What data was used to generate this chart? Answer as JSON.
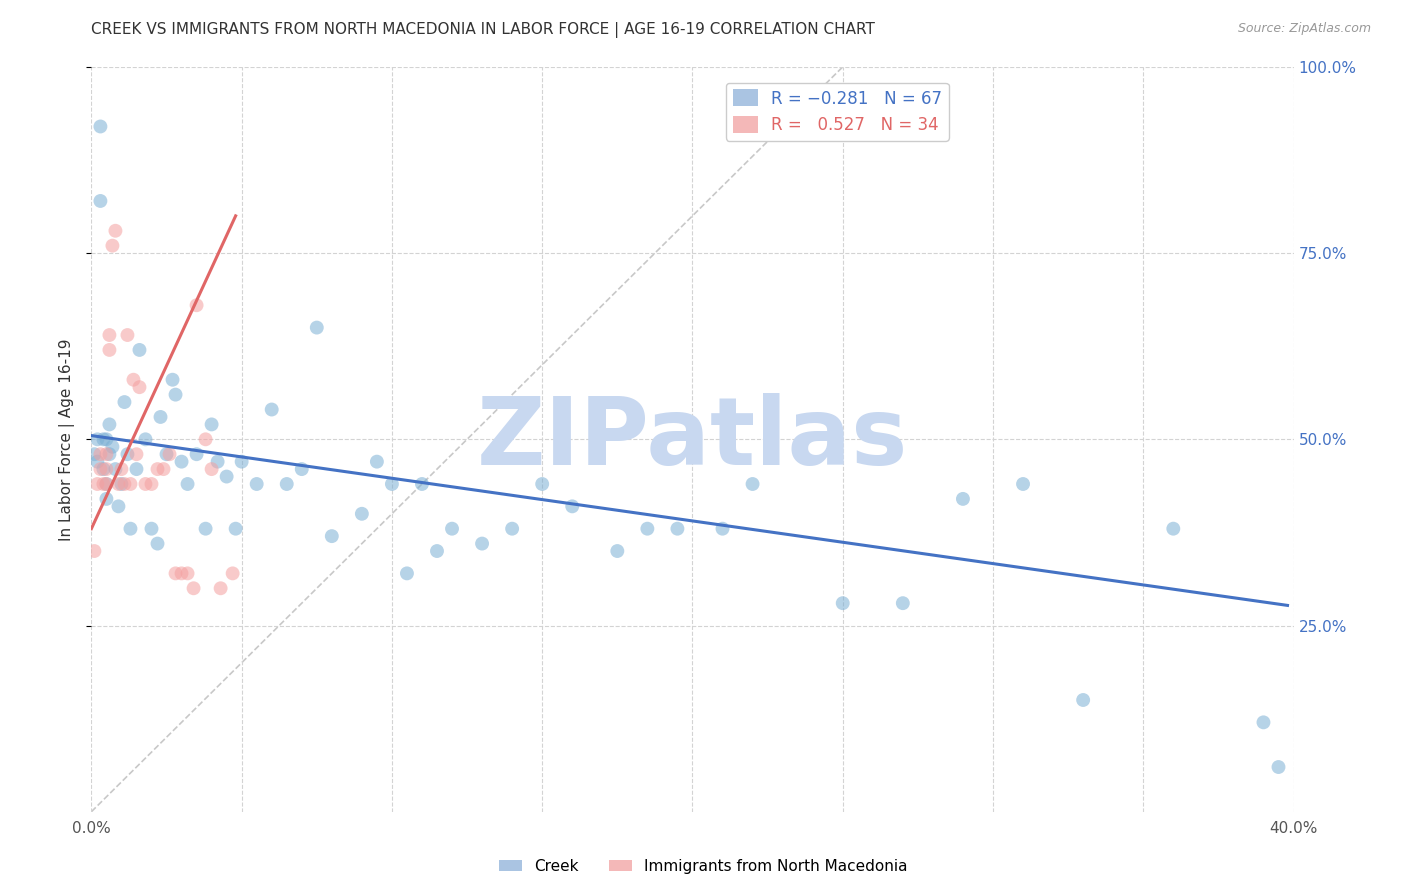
{
  "title": "CREEK VS IMMIGRANTS FROM NORTH MACEDONIA IN LABOR FORCE | AGE 16-19 CORRELATION CHART",
  "source": "Source: ZipAtlas.com",
  "ylabel": "In Labor Force | Age 16-19",
  "x_min": 0.0,
  "x_max": 0.4,
  "y_min": 0.0,
  "y_max": 1.0,
  "x_ticks": [
    0.0,
    0.05,
    0.1,
    0.15,
    0.2,
    0.25,
    0.3,
    0.35,
    0.4
  ],
  "x_tick_labels": [
    "0.0%",
    "",
    "",
    "",
    "",
    "",
    "",
    "",
    "40.0%"
  ],
  "y_ticks_right": [
    0.25,
    0.5,
    0.75,
    1.0
  ],
  "y_tick_labels_right": [
    "25.0%",
    "50.0%",
    "75.0%",
    "100.0%"
  ],
  "creek_color": "#7bafd4",
  "nm_color": "#f4a0a0",
  "blue_line_color": "#4472c4",
  "pink_line_color": "#e06666",
  "grid_color": "#d3d3d3",
  "watermark": "ZIPatlas",
  "creek_x": [
    0.001,
    0.002,
    0.002,
    0.003,
    0.003,
    0.004,
    0.004,
    0.005,
    0.005,
    0.005,
    0.006,
    0.006,
    0.007,
    0.008,
    0.009,
    0.01,
    0.011,
    0.012,
    0.013,
    0.015,
    0.016,
    0.018,
    0.02,
    0.022,
    0.023,
    0.025,
    0.027,
    0.028,
    0.03,
    0.032,
    0.035,
    0.038,
    0.04,
    0.042,
    0.045,
    0.048,
    0.05,
    0.055,
    0.06,
    0.065,
    0.07,
    0.075,
    0.08,
    0.09,
    0.095,
    0.1,
    0.105,
    0.11,
    0.115,
    0.12,
    0.13,
    0.14,
    0.15,
    0.16,
    0.175,
    0.185,
    0.195,
    0.21,
    0.22,
    0.25,
    0.27,
    0.29,
    0.31,
    0.33,
    0.36,
    0.39,
    0.395
  ],
  "creek_y": [
    0.48,
    0.5,
    0.47,
    0.92,
    0.82,
    0.46,
    0.5,
    0.5,
    0.44,
    0.42,
    0.52,
    0.48,
    0.49,
    0.46,
    0.41,
    0.44,
    0.55,
    0.48,
    0.38,
    0.46,
    0.62,
    0.5,
    0.38,
    0.36,
    0.53,
    0.48,
    0.58,
    0.56,
    0.47,
    0.44,
    0.48,
    0.38,
    0.52,
    0.47,
    0.45,
    0.38,
    0.47,
    0.44,
    0.54,
    0.44,
    0.46,
    0.65,
    0.37,
    0.4,
    0.47,
    0.44,
    0.32,
    0.44,
    0.35,
    0.38,
    0.36,
    0.38,
    0.44,
    0.41,
    0.35,
    0.38,
    0.38,
    0.38,
    0.44,
    0.28,
    0.28,
    0.42,
    0.44,
    0.15,
    0.38,
    0.12,
    0.06
  ],
  "nm_x": [
    0.001,
    0.002,
    0.003,
    0.003,
    0.004,
    0.005,
    0.005,
    0.005,
    0.006,
    0.006,
    0.007,
    0.008,
    0.009,
    0.01,
    0.011,
    0.012,
    0.013,
    0.014,
    0.015,
    0.016,
    0.018,
    0.02,
    0.022,
    0.024,
    0.026,
    0.028,
    0.03,
    0.032,
    0.034,
    0.035,
    0.038,
    0.04,
    0.043,
    0.047
  ],
  "nm_y": [
    0.35,
    0.44,
    0.48,
    0.46,
    0.44,
    0.46,
    0.44,
    0.48,
    0.62,
    0.64,
    0.76,
    0.78,
    0.44,
    0.46,
    0.44,
    0.64,
    0.44,
    0.58,
    0.48,
    0.57,
    0.44,
    0.44,
    0.46,
    0.46,
    0.48,
    0.32,
    0.32,
    0.32,
    0.3,
    0.68,
    0.5,
    0.46,
    0.3,
    0.32
  ],
  "blue_line_x0": 0.0,
  "blue_line_x1": 0.398,
  "blue_line_y0": 0.505,
  "blue_line_y1": 0.277,
  "pink_line_x0": 0.0,
  "pink_line_x1": 0.048,
  "pink_line_y0": 0.38,
  "pink_line_y1": 0.8,
  "diag_line_color": "#c8c8c8",
  "title_color": "#333333",
  "right_axis_color": "#4472c4",
  "marker_size": 100,
  "marker_alpha": 0.55,
  "watermark_color": "#c8d8f0",
  "watermark_fontsize": 68,
  "legend_blue_text": "R = −0.281   N = 67",
  "legend_pink_text": "R =   0.527   N = 34",
  "legend_blue_color": "#4472c4",
  "legend_pink_color": "#e06666",
  "legend_patch_blue": "#aac4e2",
  "legend_patch_pink": "#f4b8b8",
  "bottom_legend_blue": "#aac4e2",
  "bottom_legend_pink": "#f4b8b8"
}
